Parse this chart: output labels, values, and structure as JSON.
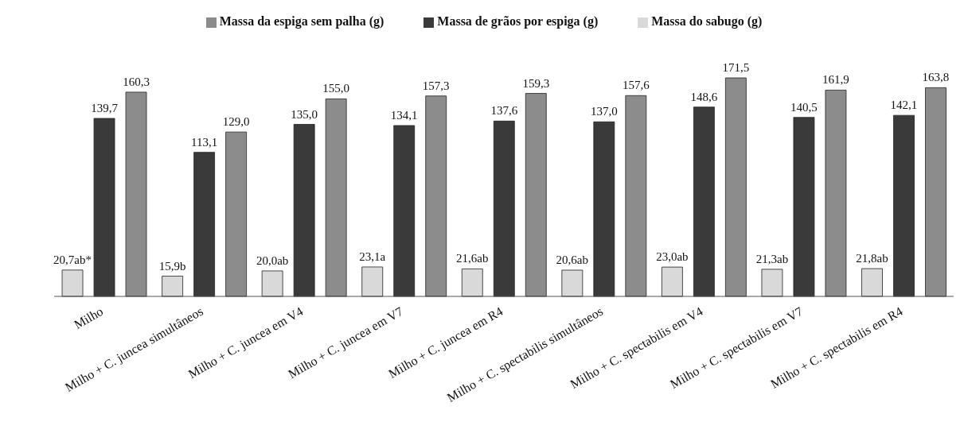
{
  "chart_data": {
    "type": "bar",
    "categories": [
      "Milho",
      "Milho + C. juncea simultâneos",
      "Milho + C. juncea em V4",
      "Milho + C. juncea em V7",
      "Milho + C. juncea em R4",
      "Milho + C. spectabilis simultâneos",
      "Milho + C. spectabilis em V4",
      "Milho + C. spectabilis em V7",
      "Milho + C. spectabilis em R4"
    ],
    "series": [
      {
        "name": "Massa do sabugo (g)",
        "color": "#d9d9d9",
        "values": [
          20.7,
          15.9,
          20.0,
          23.1,
          21.6,
          20.6,
          23.0,
          21.3,
          21.8
        ],
        "value_labels": [
          "20,7ab*",
          "15,9b",
          "20,0ab",
          "23,1a",
          "21,6ab",
          "20,6ab",
          "23,0ab",
          "21,3ab",
          "21,8ab"
        ]
      },
      {
        "name": "Massa de grãos por espiga (g)",
        "color": "#3a3a3a",
        "values": [
          139.7,
          113.1,
          135.0,
          134.1,
          137.6,
          137.0,
          148.6,
          140.5,
          142.1
        ],
        "value_labels": [
          "139,7",
          "113,1",
          "135,0",
          "134,1",
          "137,6",
          "137,0",
          "148,6",
          "140,5",
          "142,1"
        ]
      },
      {
        "name": "Massa da espiga sem palha (g)",
        "color": "#8c8c8c",
        "values": [
          160.3,
          129.0,
          155.0,
          157.3,
          159.3,
          157.6,
          171.5,
          161.9,
          163.8
        ],
        "value_labels": [
          "160,3",
          "129,0",
          "155,0",
          "157,3",
          "159,3",
          "157,6",
          "171,5",
          "161,9",
          "163,8"
        ]
      }
    ],
    "legend": "top",
    "grid": false
  }
}
